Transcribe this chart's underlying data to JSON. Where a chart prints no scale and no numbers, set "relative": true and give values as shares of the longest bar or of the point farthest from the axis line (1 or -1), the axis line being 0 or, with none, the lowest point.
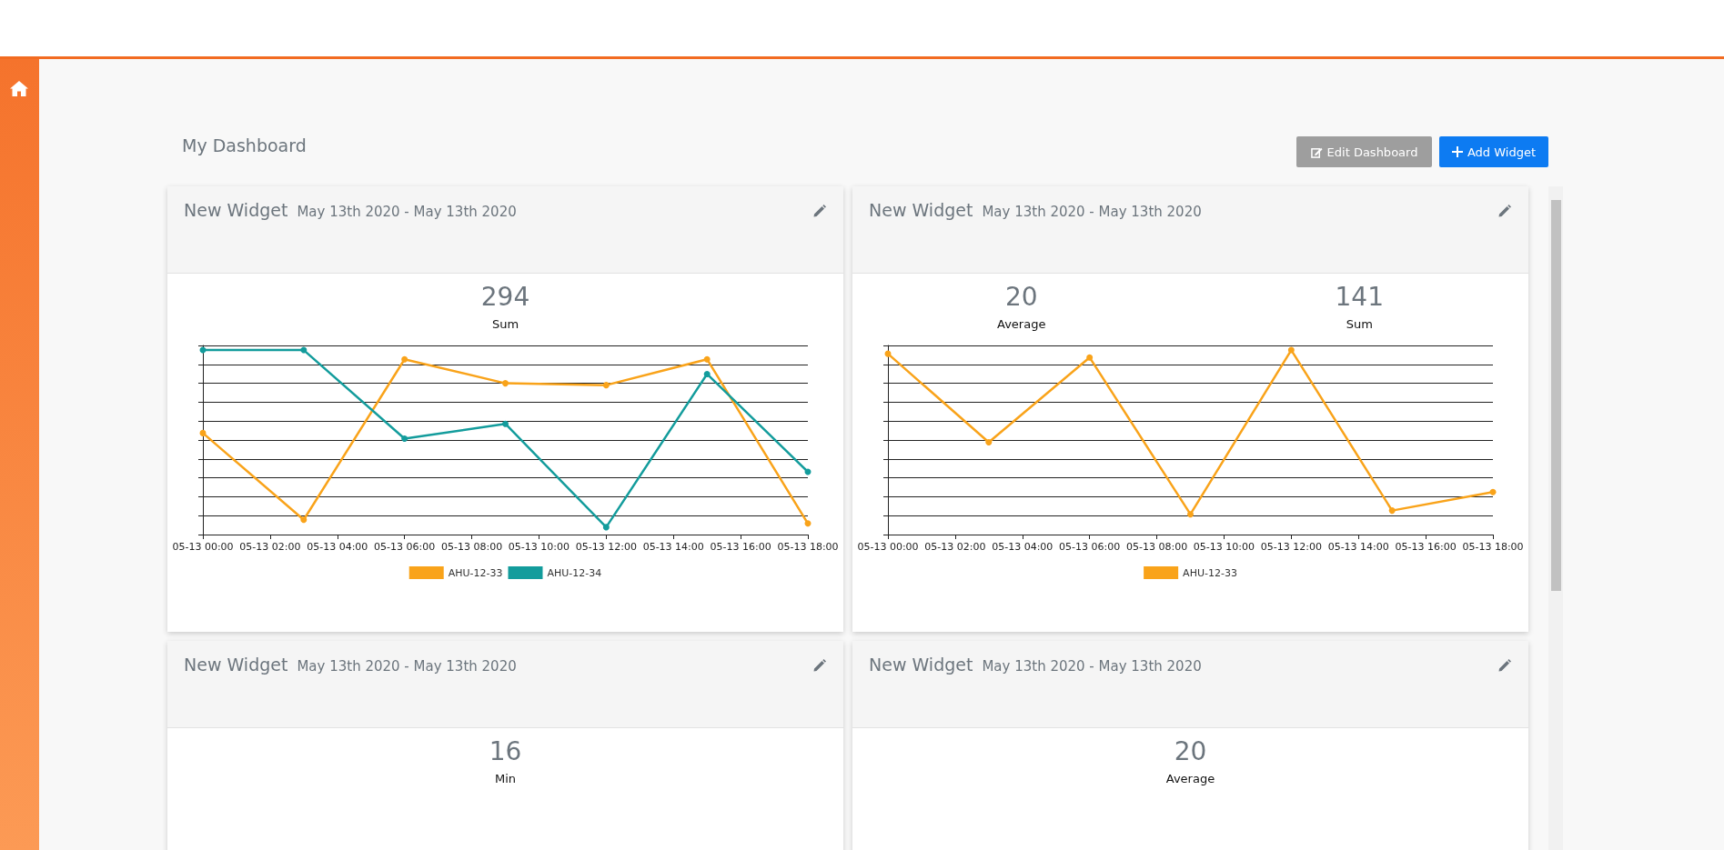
{
  "chart_data": [
    {
      "type": "other",
      "title": "My Dashboard",
      "annotations": [
        "Edit Dashboard",
        "Add Widget"
      ]
    },
    {
      "type": "line",
      "title": "New Widget",
      "subtitle": "May 13th 2020 - May 13th 2020",
      "annotations": [
        "294",
        "Sum"
      ],
      "relative": true,
      "grid": "y",
      "legend": "bottom",
      "marker": "circle",
      "line_style": "solid",
      "xlim": [
        "2020-05-13T00:00",
        "2020-05-13T18:00"
      ],
      "xticks": [
        {
          "value": "2020-05-13T00:00",
          "label": "05-13 00:00"
        },
        {
          "value": "2020-05-13T02:00",
          "label": "05-13 02:00"
        },
        {
          "value": "2020-05-13T04:00",
          "label": "05-13 04:00"
        },
        {
          "value": "2020-05-13T06:00",
          "label": "05-13 06:00"
        },
        {
          "value": "2020-05-13T08:00",
          "label": "05-13 08:00"
        },
        {
          "value": "2020-05-13T10:00",
          "label": "05-13 10:00"
        },
        {
          "value": "2020-05-13T12:00",
          "label": "05-13 12:00"
        },
        {
          "value": "2020-05-13T14:00",
          "label": "05-13 14:00"
        },
        {
          "value": "2020-05-13T16:00",
          "label": "05-13 16:00"
        },
        {
          "value": "2020-05-13T18:00",
          "label": "05-13 18:00"
        }
      ],
      "x": [
        "2020-05-13T00:00",
        "2020-05-13T03:00",
        "2020-05-13T06:00",
        "2020-05-13T09:00",
        "2020-05-13T12:00",
        "2020-05-13T15:00",
        "2020-05-13T18:00"
      ],
      "series": [
        {
          "name": "AHU-12-33",
          "color": "#f9a31a",
          "values": [
            0.55,
            0.08,
            0.95,
            0.82,
            0.81,
            0.95,
            0.06
          ]
        },
        {
          "name": "AHU-12-34",
          "color": "#139c9c",
          "values": [
            1,
            1,
            0.52,
            0.6,
            0.04,
            0.87,
            0.34
          ]
        }
      ]
    },
    {
      "type": "line",
      "title": "New Widget",
      "subtitle": "May 13th 2020 - May 13th 2020",
      "annotations": [
        "20",
        "Average",
        "141",
        "Sum"
      ],
      "relative": true,
      "grid": "y",
      "legend": "bottom",
      "marker": "circle",
      "line_style": "solid",
      "xlim": [
        "2020-05-13T00:00",
        "2020-05-13T18:00"
      ],
      "xticks": [
        {
          "value": "2020-05-13T00:00",
          "label": "05-13 00:00"
        },
        {
          "value": "2020-05-13T02:00",
          "label": "05-13 02:00"
        },
        {
          "value": "2020-05-13T04:00",
          "label": "05-13 04:00"
        },
        {
          "value": "2020-05-13T06:00",
          "label": "05-13 06:00"
        },
        {
          "value": "2020-05-13T08:00",
          "label": "05-13 08:00"
        },
        {
          "value": "2020-05-13T10:00",
          "label": "05-13 10:00"
        },
        {
          "value": "2020-05-13T12:00",
          "label": "05-13 12:00"
        },
        {
          "value": "2020-05-13T14:00",
          "label": "05-13 14:00"
        },
        {
          "value": "2020-05-13T16:00",
          "label": "05-13 16:00"
        },
        {
          "value": "2020-05-13T18:00",
          "label": "05-13 18:00"
        }
      ],
      "x": [
        "2020-05-13T00:00",
        "2020-05-13T03:00",
        "2020-05-13T06:00",
        "2020-05-13T09:00",
        "2020-05-13T12:00",
        "2020-05-13T15:00",
        "2020-05-13T18:00"
      ],
      "series": [
        {
          "name": "AHU-12-33",
          "color": "#f9a31a",
          "values": [
            0.98,
            0.5,
            0.96,
            0.11,
            1,
            0.13,
            0.23
          ]
        }
      ]
    },
    {
      "type": "other",
      "title": "New Widget",
      "subtitle": "May 13th 2020 - May 13th 2020",
      "annotations": [
        "16",
        "Min"
      ]
    },
    {
      "type": "other",
      "title": "New Widget",
      "subtitle": "May 13th 2020 - May 13th 2020",
      "annotations": [
        "20",
        "Average"
      ]
    }
  ]
}
